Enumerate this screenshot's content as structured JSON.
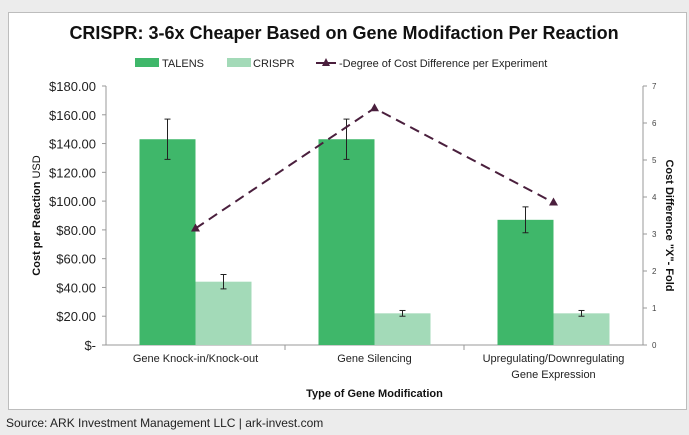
{
  "chart_data": {
    "type": "bar",
    "title": "CRISPR: 3-6x Cheaper Based on Gene Modifaction Per Reaction",
    "xlabel": "Type of Gene Modification",
    "ylabel": "Cost per Reaction USD",
    "ylabel_bold": "Cost per Reaction",
    "ylabel_rest": "USD",
    "y2label": "Cost Difference \"X\"- Fold",
    "ylim": [
      0,
      180
    ],
    "y2lim": [
      0,
      7
    ],
    "yticks": [
      "$-",
      "$20.00",
      "$40.00",
      "$60.00",
      "$80.00",
      "$100.00",
      "$120.00",
      "$140.00",
      "$160.00",
      "$180.00"
    ],
    "y2ticks": [
      "0",
      "1",
      "2",
      "3",
      "4",
      "5",
      "6",
      "7"
    ],
    "categories": [
      [
        "Gene Knock-in/Knock-out"
      ],
      [
        "Gene Silencing"
      ],
      [
        "Upregulating/Downregulating",
        "Gene Expression"
      ]
    ],
    "legend_position": "top",
    "series": [
      {
        "name": "TALENS",
        "type": "bar",
        "color": "#3fb76a",
        "values": [
          143,
          143,
          87
        ],
        "errors": [
          14,
          14,
          9
        ]
      },
      {
        "name": "CRISPR",
        "type": "bar",
        "color": "#a3dab8",
        "values": [
          44,
          22,
          22
        ],
        "errors": [
          5,
          2,
          2
        ]
      },
      {
        "name": "Degree of Cost Difference per Experiment",
        "type": "line",
        "axis": "right",
        "color": "#4a1f3d",
        "values": [
          3.15,
          6.4,
          3.85
        ]
      }
    ]
  },
  "source": "Source: ARK Investment Management LLC | ark-invest.com"
}
